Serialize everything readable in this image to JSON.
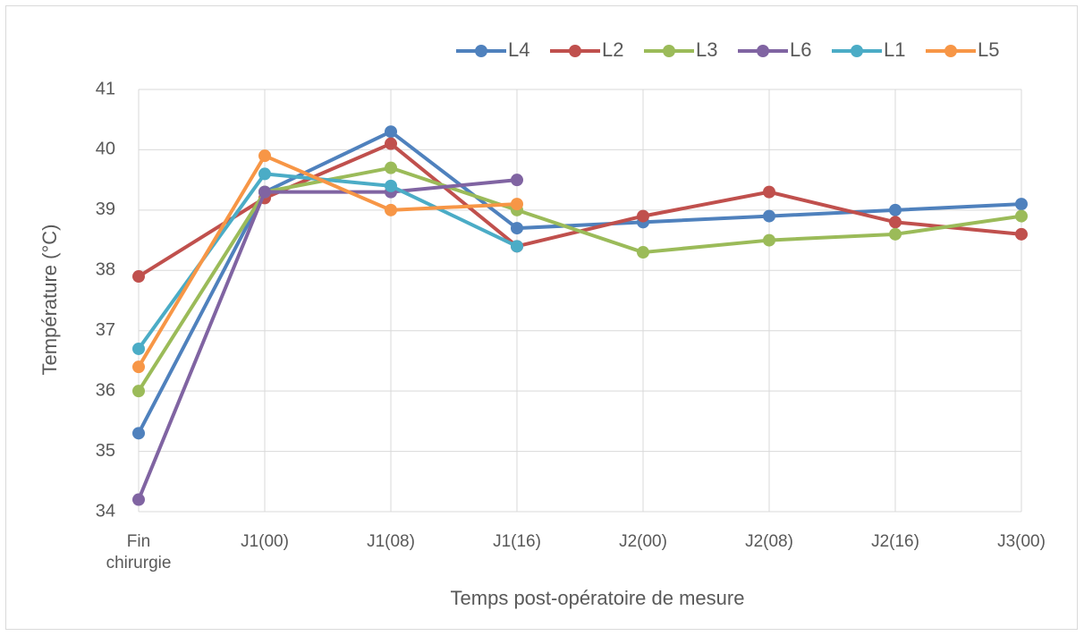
{
  "chart_data": {
    "type": "line",
    "x_label": "Temps post-opératoire de mesure",
    "y_label": "Température (°C)",
    "categories": [
      "Fin chirurgie",
      "J1(00)",
      "J1(08)",
      "J1(16)",
      "J2(00)",
      "J2(08)",
      "J2(16)",
      "J3(00)"
    ],
    "series": [
      {
        "name": "L4",
        "color": "#4f81bd",
        "values": [
          35.3,
          39.3,
          40.3,
          38.7,
          38.8,
          38.9,
          39.0,
          39.1
        ]
      },
      {
        "name": "L2",
        "color": "#c0504d",
        "values": [
          37.9,
          39.2,
          40.1,
          38.4,
          38.9,
          39.3,
          38.8,
          38.6
        ]
      },
      {
        "name": "L3",
        "color": "#9bbb59",
        "values": [
          36.0,
          39.3,
          39.7,
          39.0,
          38.3,
          38.5,
          38.6,
          38.9
        ]
      },
      {
        "name": "L6",
        "color": "#8064a2",
        "values": [
          34.2,
          39.3,
          39.3,
          39.5,
          null,
          null,
          null,
          null
        ]
      },
      {
        "name": "L1",
        "color": "#4bacc6",
        "values": [
          36.7,
          39.6,
          39.4,
          38.4,
          null,
          null,
          null,
          null
        ]
      },
      {
        "name": "L5",
        "color": "#f79646",
        "values": [
          36.4,
          39.9,
          39.0,
          39.1,
          null,
          null,
          null,
          null
        ]
      }
    ],
    "ylim": [
      34,
      41
    ],
    "yticks": [
      34,
      35,
      36,
      37,
      38,
      39,
      40,
      41
    ],
    "grid": true,
    "legend": "top"
  }
}
